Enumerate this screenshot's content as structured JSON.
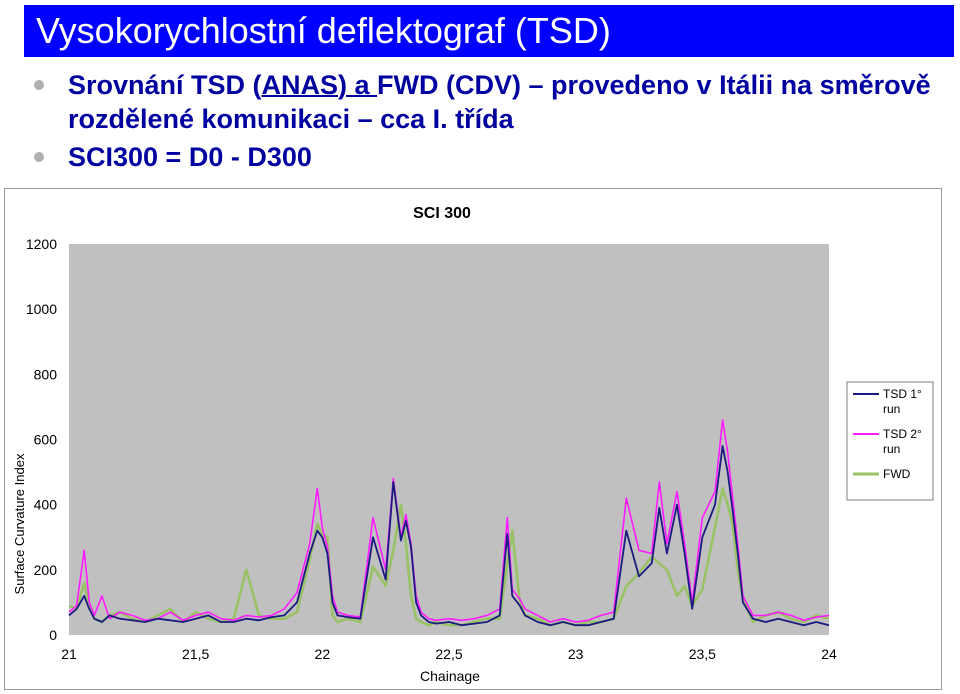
{
  "slide": {
    "title": "Vysokorychlostní deflektograf (TSD)",
    "bullet1_pre": "Srovnání TSD (",
    "bullet1_ul": "ANAS) a ",
    "bullet1_post": "FWD (CDV) – provedeno v Itálii na směrově rozdělené komunikaci – cca I. třída",
    "bullet2": "SCI300 = D0 - D300"
  },
  "colors": {
    "title_bg": "#0000ff",
    "text": "#0000a0",
    "plot_bg": "#c0c0c0",
    "tsd1": "#1a1a80",
    "tsd2": "#ff1aff",
    "fwd": "#99c266"
  },
  "chart_data": {
    "type": "line",
    "title": "SCI 300",
    "xlabel": "Chainage",
    "ylabel": "Surface Curvature Index",
    "xlim": [
      21,
      24
    ],
    "ylim": [
      0,
      1200
    ],
    "xticks": [
      "21",
      "21,5",
      "22",
      "22,5",
      "23",
      "23,5",
      "24"
    ],
    "yticks": [
      "0",
      "200",
      "400",
      "600",
      "800",
      "1000",
      "1200"
    ],
    "grid": false,
    "legend_position": "right",
    "series": [
      {
        "name": "TSD 1° run",
        "color": "#1a1a80",
        "x": [
          21.0,
          21.03,
          21.06,
          21.08,
          21.1,
          21.13,
          21.16,
          21.2,
          21.25,
          21.3,
          21.35,
          21.4,
          21.45,
          21.5,
          21.55,
          21.6,
          21.65,
          21.7,
          21.75,
          21.8,
          21.85,
          21.9,
          21.95,
          21.98,
          22.0,
          22.02,
          22.04,
          22.06,
          22.1,
          22.15,
          22.2,
          22.25,
          22.28,
          22.31,
          22.33,
          22.35,
          22.37,
          22.39,
          22.42,
          22.45,
          22.5,
          22.55,
          22.6,
          22.65,
          22.7,
          22.73,
          22.75,
          22.78,
          22.8,
          22.85,
          22.9,
          22.95,
          23.0,
          23.05,
          23.1,
          23.15,
          23.2,
          23.25,
          23.3,
          23.33,
          23.36,
          23.4,
          23.43,
          23.46,
          23.5,
          23.55,
          23.58,
          23.6,
          23.62,
          23.64,
          23.66,
          23.7,
          23.75,
          23.8,
          23.85,
          23.9,
          23.95,
          24.0
        ],
        "values": [
          60,
          80,
          120,
          80,
          50,
          40,
          60,
          50,
          45,
          40,
          50,
          45,
          40,
          50,
          60,
          40,
          40,
          50,
          45,
          55,
          60,
          100,
          250,
          320,
          300,
          250,
          100,
          60,
          55,
          50,
          300,
          170,
          470,
          290,
          350,
          270,
          100,
          60,
          40,
          35,
          40,
          30,
          35,
          40,
          60,
          310,
          120,
          90,
          60,
          40,
          30,
          40,
          30,
          30,
          40,
          50,
          320,
          180,
          220,
          390,
          250,
          400,
          250,
          80,
          300,
          400,
          580,
          500,
          380,
          250,
          100,
          50,
          40,
          50,
          40,
          30,
          40,
          30
        ]
      },
      {
        "name": "TSD 2° run",
        "color": "#ff1aff",
        "x": [
          21.0,
          21.03,
          21.06,
          21.08,
          21.1,
          21.13,
          21.16,
          21.2,
          21.25,
          21.3,
          21.35,
          21.4,
          21.45,
          21.5,
          21.55,
          21.6,
          21.65,
          21.7,
          21.75,
          21.8,
          21.85,
          21.9,
          21.95,
          21.98,
          22.0,
          22.02,
          22.04,
          22.06,
          22.1,
          22.15,
          22.2,
          22.25,
          22.28,
          22.31,
          22.33,
          22.35,
          22.37,
          22.39,
          22.42,
          22.45,
          22.5,
          22.55,
          22.6,
          22.65,
          22.7,
          22.73,
          22.75,
          22.78,
          22.8,
          22.85,
          22.9,
          22.95,
          23.0,
          23.05,
          23.1,
          23.15,
          23.2,
          23.25,
          23.3,
          23.33,
          23.36,
          23.4,
          23.43,
          23.46,
          23.5,
          23.55,
          23.58,
          23.6,
          23.62,
          23.64,
          23.66,
          23.7,
          23.75,
          23.8,
          23.85,
          23.9,
          23.95,
          24.0
        ],
        "values": [
          70,
          90,
          260,
          100,
          60,
          120,
          50,
          70,
          60,
          45,
          50,
          70,
          45,
          60,
          70,
          50,
          45,
          60,
          55,
          60,
          80,
          130,
          280,
          450,
          330,
          270,
          120,
          70,
          60,
          55,
          360,
          200,
          480,
          300,
          370,
          280,
          120,
          70,
          50,
          45,
          50,
          45,
          50,
          60,
          80,
          360,
          140,
          110,
          80,
          60,
          40,
          50,
          40,
          45,
          60,
          70,
          420,
          260,
          250,
          470,
          280,
          440,
          280,
          100,
          360,
          440,
          660,
          560,
          420,
          280,
          120,
          60,
          60,
          70,
          60,
          45,
          55,
          60
        ]
      },
      {
        "name": "FWD",
        "color": "#99c266",
        "x": [
          21.0,
          21.03,
          21.06,
          21.08,
          21.1,
          21.13,
          21.16,
          21.2,
          21.25,
          21.3,
          21.35,
          21.4,
          21.45,
          21.5,
          21.55,
          21.6,
          21.65,
          21.7,
          21.75,
          21.8,
          21.85,
          21.9,
          21.95,
          21.98,
          22.0,
          22.02,
          22.04,
          22.06,
          22.1,
          22.15,
          22.2,
          22.25,
          22.28,
          22.31,
          22.33,
          22.35,
          22.37,
          22.39,
          22.42,
          22.45,
          22.5,
          22.55,
          22.6,
          22.65,
          22.7,
          22.73,
          22.75,
          22.78,
          22.8,
          22.85,
          22.9,
          22.95,
          23.0,
          23.05,
          23.1,
          23.15,
          23.2,
          23.25,
          23.3,
          23.33,
          23.36,
          23.4,
          23.43,
          23.46,
          23.5,
          23.55,
          23.58,
          23.6,
          23.62,
          23.64,
          23.66,
          23.7,
          23.75,
          23.8,
          23.85,
          23.9,
          23.95,
          24.0
        ],
        "values": [
          90,
          80,
          160,
          90,
          50,
          40,
          60,
          70,
          50,
          40,
          60,
          80,
          40,
          70,
          50,
          40,
          50,
          200,
          60,
          50,
          50,
          70,
          230,
          340,
          310,
          300,
          60,
          40,
          50,
          40,
          210,
          150,
          260,
          400,
          280,
          120,
          50,
          40,
          30,
          40,
          30,
          30,
          40,
          50,
          50,
          220,
          320,
          100,
          60,
          50,
          30,
          40,
          30,
          40,
          40,
          50,
          150,
          190,
          240,
          220,
          200,
          120,
          150,
          90,
          140,
          330,
          450,
          400,
          340,
          200,
          110,
          40,
          60,
          70,
          50,
          40,
          60,
          50
        ]
      }
    ]
  }
}
